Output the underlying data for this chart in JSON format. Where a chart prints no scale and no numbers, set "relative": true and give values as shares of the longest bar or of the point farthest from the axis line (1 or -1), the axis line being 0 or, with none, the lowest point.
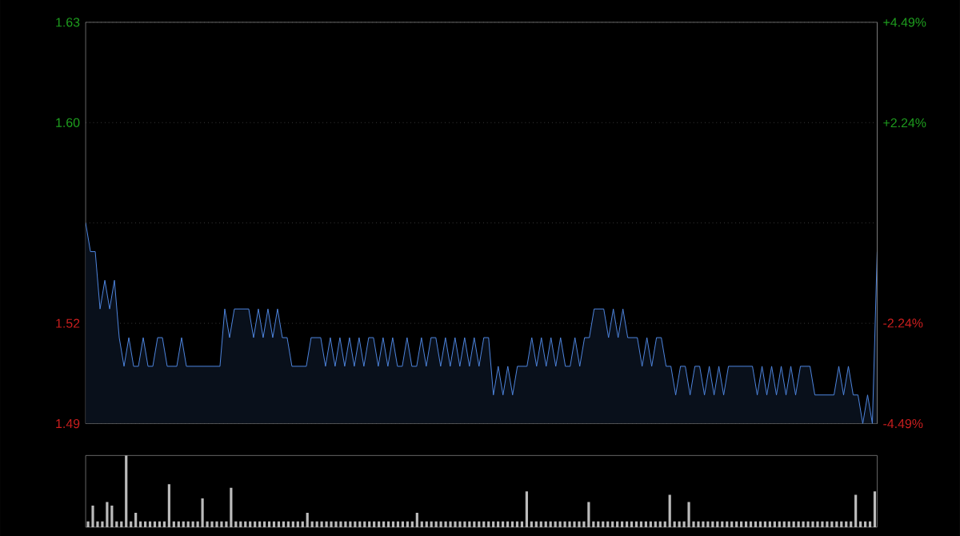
{
  "chart_data": [
    {
      "type": "area",
      "grid": "y",
      "categories": [
        null,
        null,
        null,
        null,
        null,
        null,
        null,
        null,
        null,
        null,
        null,
        null,
        null,
        null,
        null,
        null,
        null,
        null,
        null,
        null,
        null,
        null,
        null,
        null,
        null,
        null,
        null,
        null,
        null,
        null,
        null,
        null,
        null,
        null,
        null,
        null,
        null,
        null,
        null,
        null,
        null,
        null,
        null,
        null,
        null,
        null,
        null,
        null,
        null,
        null,
        null,
        null,
        null,
        null,
        null,
        null,
        null,
        null,
        null,
        null,
        null,
        null,
        null,
        null,
        null,
        null,
        null,
        null,
        null,
        null,
        null,
        null,
        null,
        null,
        null,
        null,
        null,
        null,
        null,
        null,
        null,
        null,
        null,
        null,
        null,
        null,
        null,
        null,
        null,
        null,
        null,
        null,
        null,
        null,
        null,
        null,
        null,
        null,
        null,
        null,
        null,
        null,
        null,
        null,
        null,
        null,
        null,
        null,
        null,
        null,
        null,
        null,
        null,
        null,
        null,
        null,
        null,
        null,
        null,
        null,
        null,
        null,
        null,
        null,
        null,
        null,
        null,
        null,
        null,
        null,
        null,
        null,
        null,
        null,
        null,
        null,
        null,
        null,
        null,
        null,
        null,
        null,
        null,
        null,
        null,
        null,
        null,
        null,
        null,
        null,
        null,
        null,
        null,
        null,
        null,
        null,
        null,
        null,
        null,
        null,
        null,
        null,
        null,
        null,
        null,
        null
      ],
      "ylim": [
        1.49,
        1.63
      ],
      "yticks": [
        {
          "value": 1.49,
          "label": "1.49"
        },
        {
          "value": 1.525,
          "label": "1.52"
        },
        {
          "value": 1.56,
          "label": null
        },
        {
          "value": 1.595,
          "label": "1.60"
        },
        {
          "value": 1.63,
          "label": "1.63"
        }
      ],
      "y2lim": [
        -4.49,
        4.49
      ],
      "y2ticks": [
        {
          "value": -4.49,
          "label": "-4.49%"
        },
        {
          "value": -2.24,
          "label": "-2.24%"
        },
        {
          "value": 0,
          "label": null
        },
        {
          "value": 2.24,
          "label": "+2.24%"
        },
        {
          "value": 4.49,
          "label": "+4.49%"
        }
      ],
      "series": [
        {
          "color": "#4f86e0",
          "values": [
            1.56,
            1.55,
            1.55,
            1.53,
            1.54,
            1.53,
            1.54,
            1.52,
            1.51,
            1.52,
            1.51,
            1.51,
            1.52,
            1.51,
            1.51,
            1.52,
            1.52,
            1.51,
            1.51,
            1.51,
            1.52,
            1.51,
            1.51,
            1.51,
            1.51,
            1.51,
            1.51,
            1.51,
            1.51,
            1.53,
            1.52,
            1.53,
            1.53,
            1.53,
            1.53,
            1.52,
            1.53,
            1.52,
            1.53,
            1.52,
            1.53,
            1.52,
            1.52,
            1.51,
            1.51,
            1.51,
            1.51,
            1.52,
            1.52,
            1.52,
            1.51,
            1.52,
            1.51,
            1.52,
            1.51,
            1.52,
            1.51,
            1.52,
            1.51,
            1.52,
            1.52,
            1.51,
            1.52,
            1.51,
            1.52,
            1.51,
            1.51,
            1.52,
            1.51,
            1.51,
            1.52,
            1.51,
            1.52,
            1.52,
            1.51,
            1.52,
            1.51,
            1.52,
            1.51,
            1.52,
            1.51,
            1.52,
            1.51,
            1.52,
            1.52,
            1.5,
            1.51,
            1.5,
            1.51,
            1.5,
            1.51,
            1.51,
            1.51,
            1.52,
            1.51,
            1.52,
            1.51,
            1.52,
            1.51,
            1.52,
            1.51,
            1.51,
            1.52,
            1.51,
            1.52,
            1.52,
            1.53,
            1.53,
            1.53,
            1.52,
            1.53,
            1.52,
            1.53,
            1.52,
            1.52,
            1.52,
            1.51,
            1.52,
            1.51,
            1.52,
            1.52,
            1.51,
            1.51,
            1.5,
            1.51,
            1.51,
            1.5,
            1.51,
            1.51,
            1.5,
            1.51,
            1.5,
            1.51,
            1.5,
            1.51,
            1.51,
            1.51,
            1.51,
            1.51,
            1.51,
            1.5,
            1.51,
            1.5,
            1.51,
            1.5,
            1.51,
            1.5,
            1.51,
            1.5,
            1.51,
            1.51,
            1.51,
            1.5,
            1.5,
            1.5,
            1.5,
            1.5,
            1.51,
            1.5,
            1.51,
            1.5,
            1.5,
            1.49,
            1.5,
            1.49,
            1.55
          ]
        }
      ]
    },
    {
      "type": "bar",
      "relative": true,
      "color": "#bbbbbb",
      "categories": [
        null,
        null,
        null,
        null,
        null,
        null,
        null,
        null,
        null,
        null,
        null,
        null,
        null,
        null,
        null,
        null,
        null,
        null,
        null,
        null,
        null,
        null,
        null,
        null,
        null,
        null,
        null,
        null,
        null,
        null,
        null,
        null,
        null,
        null,
        null,
        null,
        null,
        null,
        null,
        null,
        null,
        null,
        null,
        null,
        null,
        null,
        null,
        null,
        null,
        null,
        null,
        null,
        null,
        null,
        null,
        null,
        null,
        null,
        null,
        null,
        null,
        null,
        null,
        null,
        null,
        null,
        null,
        null,
        null,
        null,
        null,
        null,
        null,
        null,
        null,
        null,
        null,
        null,
        null,
        null,
        null,
        null,
        null,
        null,
        null,
        null,
        null,
        null,
        null,
        null,
        null,
        null,
        null,
        null,
        null,
        null,
        null,
        null,
        null,
        null,
        null,
        null,
        null,
        null,
        null,
        null,
        null,
        null,
        null,
        null,
        null,
        null,
        null,
        null,
        null,
        null,
        null,
        null,
        null,
        null,
        null,
        null,
        null,
        null,
        null,
        null,
        null,
        null,
        null,
        null,
        null,
        null,
        null,
        null,
        null,
        null,
        null,
        null,
        null,
        null,
        null,
        null,
        null,
        null,
        null,
        null,
        null,
        null,
        null,
        null,
        null,
        null,
        null,
        null,
        null,
        null,
        null,
        null,
        null,
        null,
        null,
        null,
        null,
        null,
        null,
        null
      ],
      "values": [
        0.08,
        0.3,
        0.08,
        0.08,
        0.35,
        0.3,
        0.08,
        0.08,
        1,
        0.08,
        0.2,
        0.08,
        0.08,
        0.08,
        0.08,
        0.08,
        0.08,
        0.6,
        0.08,
        0.08,
        0.08,
        0.08,
        0.08,
        0.08,
        0.4,
        0.08,
        0.08,
        0.08,
        0.08,
        0.08,
        0.55,
        0.08,
        0.08,
        0.08,
        0.08,
        0.08,
        0.08,
        0.08,
        0.08,
        0.08,
        0.08,
        0.08,
        0.08,
        0.08,
        0.08,
        0.08,
        0.2,
        0.08,
        0.08,
        0.08,
        0.08,
        0.08,
        0.08,
        0.08,
        0.08,
        0.08,
        0.08,
        0.08,
        0.08,
        0.08,
        0.08,
        0.08,
        0.08,
        0.08,
        0.08,
        0.08,
        0.08,
        0.08,
        0.08,
        0.2,
        0.08,
        0.08,
        0.08,
        0.08,
        0.08,
        0.08,
        0.08,
        0.08,
        0.08,
        0.08,
        0.08,
        0.08,
        0.08,
        0.08,
        0.08,
        0.08,
        0.08,
        0.08,
        0.08,
        0.08,
        0.08,
        0.08,
        0.5,
        0.08,
        0.08,
        0.08,
        0.08,
        0.08,
        0.08,
        0.08,
        0.08,
        0.08,
        0.08,
        0.08,
        0.08,
        0.35,
        0.08,
        0.08,
        0.08,
        0.08,
        0.08,
        0.08,
        0.08,
        0.08,
        0.08,
        0.08,
        0.08,
        0.08,
        0.08,
        0.08,
        0.08,
        0.08,
        0.45,
        0.08,
        0.08,
        0.08,
        0.35,
        0.08,
        0.08,
        0.08,
        0.08,
        0.08,
        0.08,
        0.08,
        0.08,
        0.08,
        0.08,
        0.08,
        0.08,
        0.08,
        0.08,
        0.08,
        0.08,
        0.08,
        0.08,
        0.08,
        0.08,
        0.08,
        0.08,
        0.08,
        0.08,
        0.08,
        0.08,
        0.08,
        0.08,
        0.08,
        0.08,
        0.08,
        0.08,
        0.08,
        0.08,
        0.45,
        0.08,
        0.08,
        0.08,
        0.5
      ]
    }
  ]
}
